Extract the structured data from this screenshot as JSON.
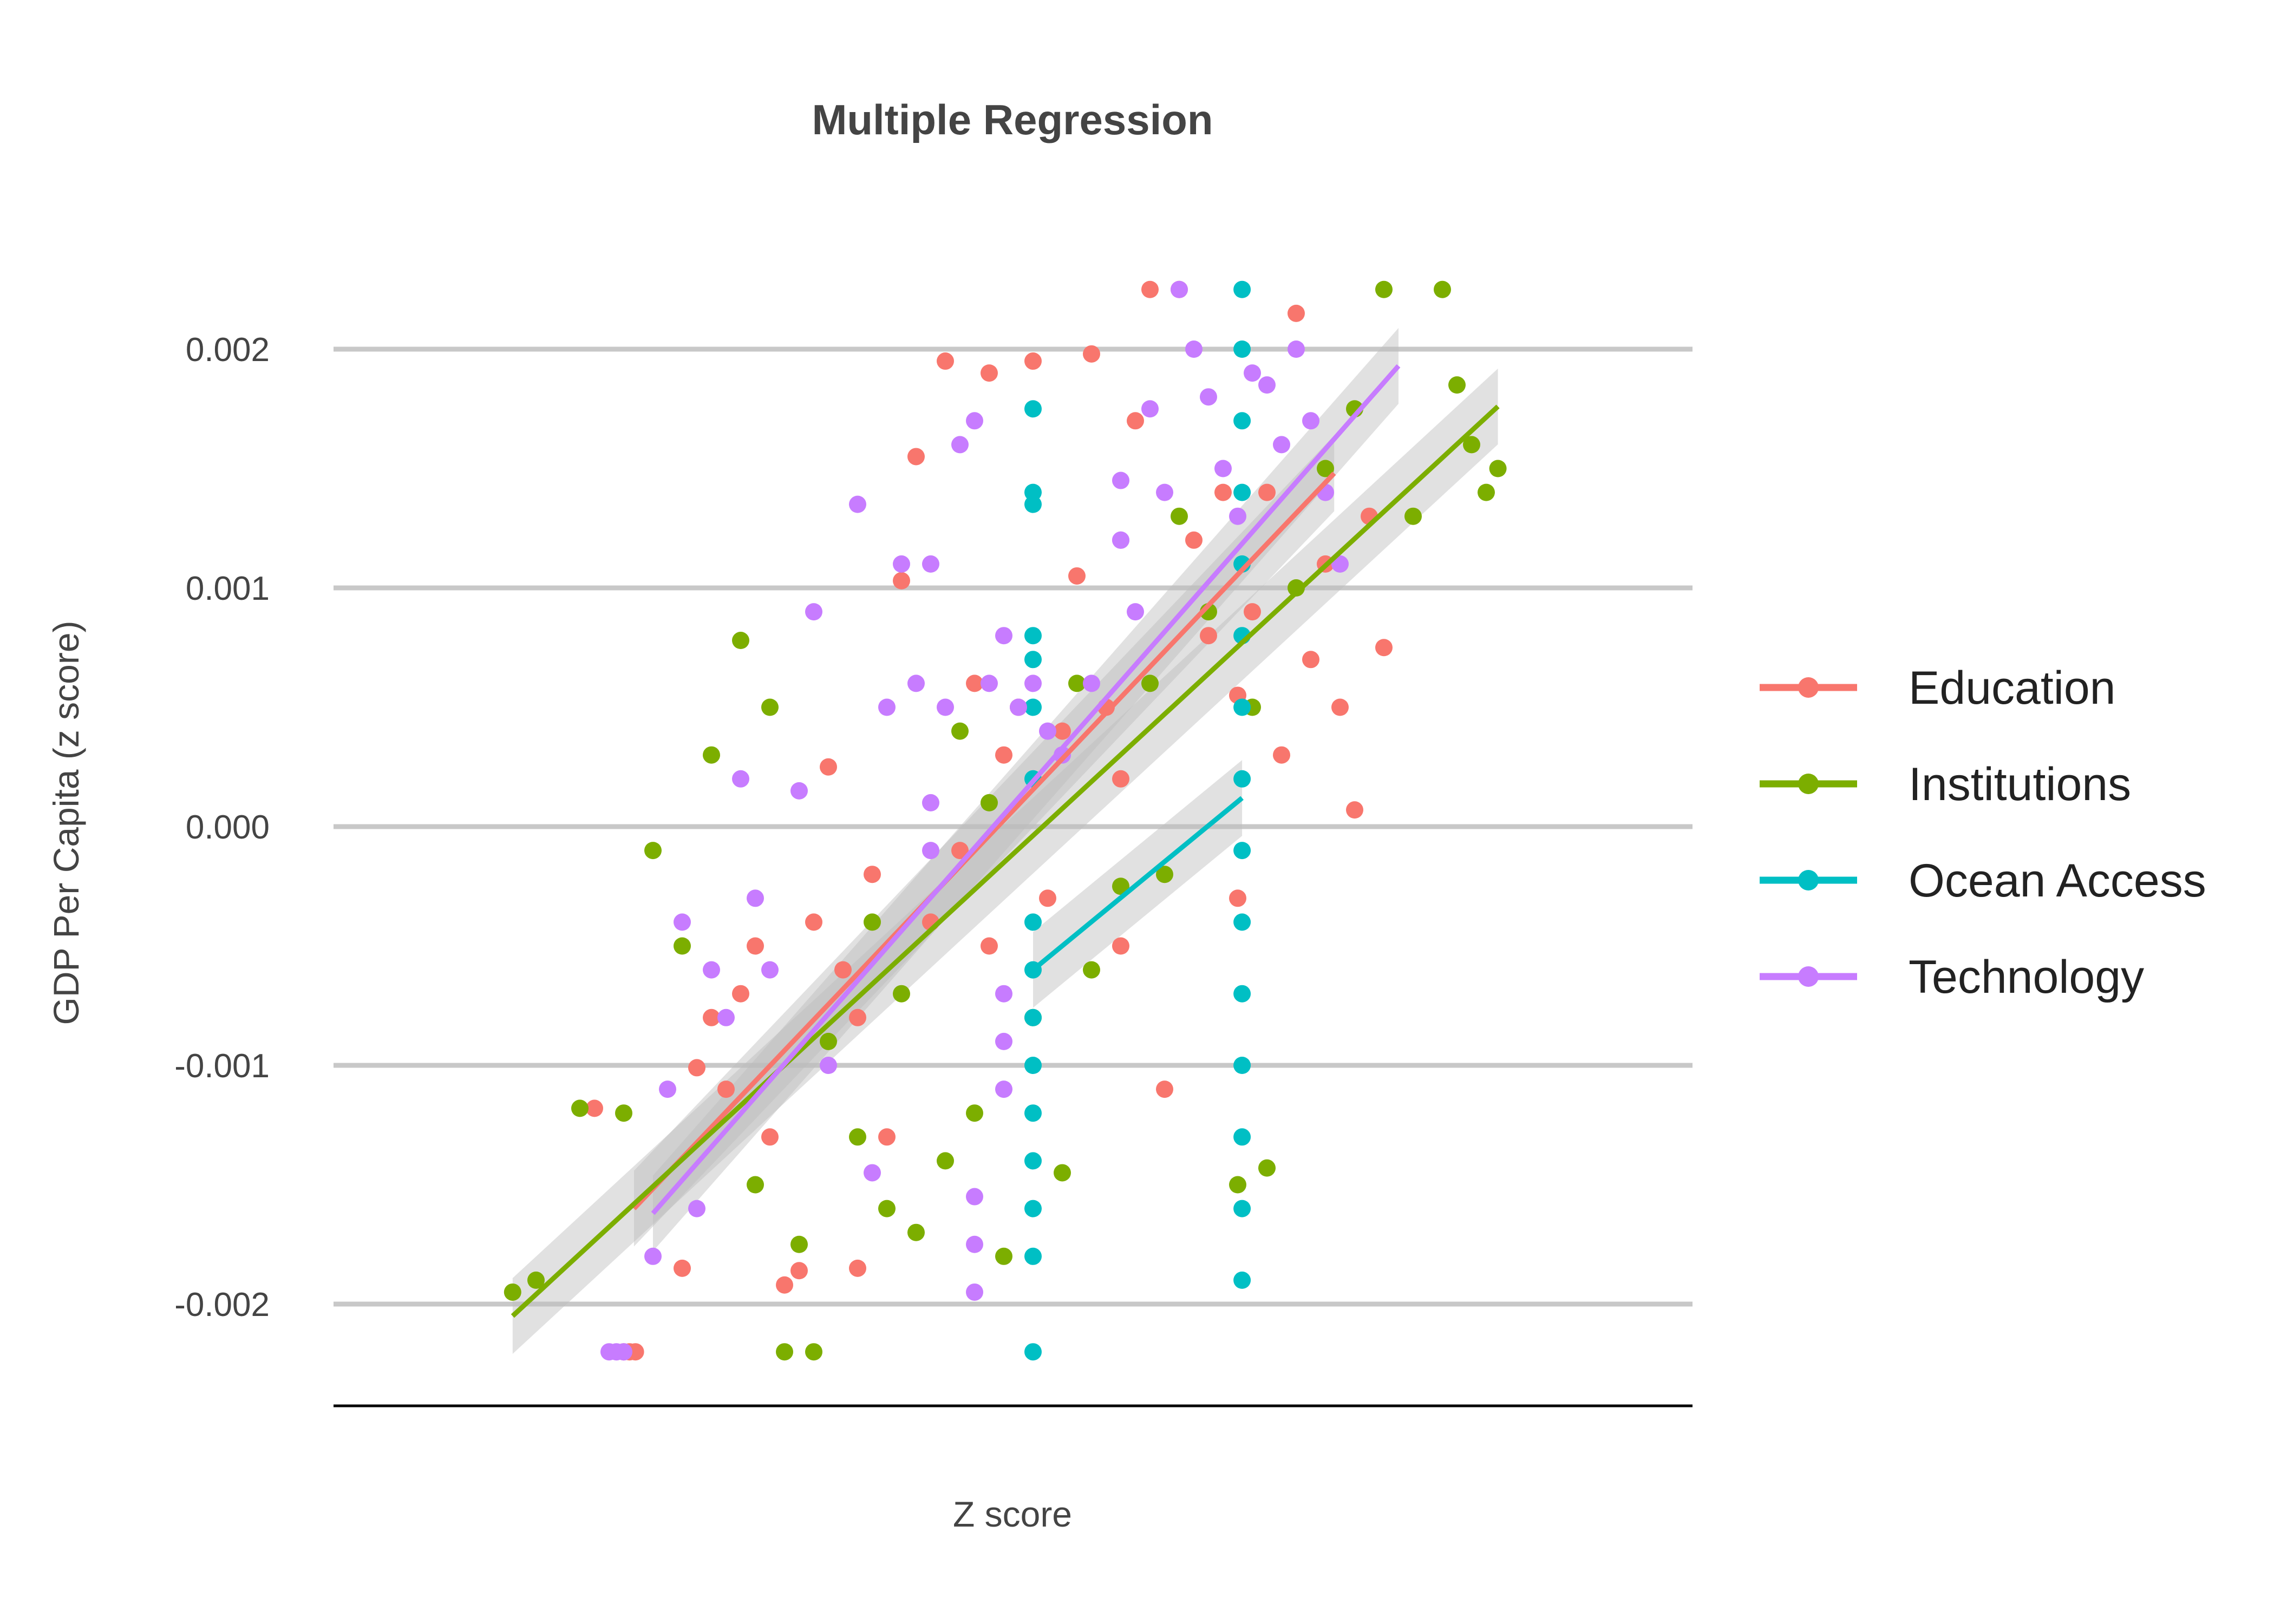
{
  "chart_data": {
    "type": "scatter",
    "title": "Multiple Regression",
    "xlabel": "Z score",
    "ylabel": "GDP Per Capita (z score)",
    "ylim": [
      -0.00242,
      0.00249
    ],
    "y_ticks": [
      0.002,
      0.001,
      0.0,
      -0.001,
      -0.002
    ],
    "y_tick_labels": [
      "0.002",
      "0.001",
      "0.000",
      "-0.001",
      "-0.002"
    ],
    "grid": "horizontal",
    "legend_position": "right",
    "series": [
      {
        "name": "Education",
        "color": "#F8766D",
        "regression_line": {
          "x": [
            -2.73,
            2.06
          ],
          "y": [
            -0.0016,
            0.00148
          ]
        },
        "points": [
          [
            -3.0,
            -0.00118
          ],
          [
            -2.4,
            -0.00185
          ],
          [
            -2.3,
            -0.00101
          ],
          [
            -2.2,
            -0.0008
          ],
          [
            -2.1,
            -0.0011
          ],
          [
            -2.0,
            -0.0007
          ],
          [
            -1.9,
            -0.0005
          ],
          [
            -1.8,
            -0.0013
          ],
          [
            -1.7,
            -0.00192
          ],
          [
            -1.6,
            -0.00186
          ],
          [
            -1.5,
            -0.0004
          ],
          [
            -1.4,
            0.00025
          ],
          [
            -1.3,
            -0.0006
          ],
          [
            -1.2,
            -0.0008
          ],
          [
            -1.1,
            -0.0002
          ],
          [
            -1.0,
            -0.0013
          ],
          [
            -0.9,
            0.00103
          ],
          [
            -0.8,
            0.00155
          ],
          [
            -0.7,
            -0.0004
          ],
          [
            -0.6,
            0.00195
          ],
          [
            -0.5,
            -0.0001
          ],
          [
            -0.4,
            0.0006
          ],
          [
            -0.3,
            0.0019
          ],
          [
            -0.2,
            0.0003
          ],
          [
            -0.1,
            0.0005
          ],
          [
            0.0,
            0.00195
          ],
          [
            0.1,
            -0.0003
          ],
          [
            0.2,
            0.0004
          ],
          [
            0.3,
            0.00105
          ],
          [
            0.4,
            0.00198
          ],
          [
            0.5,
            0.0005
          ],
          [
            0.6,
            -0.0005
          ],
          [
            0.7,
            0.0017
          ],
          [
            0.8,
            0.00225
          ],
          [
            0.9,
            -0.0011
          ],
          [
            1.0,
            0.00225
          ],
          [
            1.1,
            0.0012
          ],
          [
            1.2,
            0.0008
          ],
          [
            1.3,
            0.0014
          ],
          [
            1.4,
            0.00055
          ],
          [
            1.5,
            0.0009
          ],
          [
            1.6,
            0.0014
          ],
          [
            1.7,
            0.0003
          ],
          [
            1.8,
            0.00215
          ],
          [
            1.9,
            0.0007
          ],
          [
            2.0,
            0.0011
          ],
          [
            2.1,
            0.0005
          ],
          [
            2.2,
            7e-05
          ],
          [
            2.3,
            0.0013
          ],
          [
            2.4,
            0.00075
          ],
          [
            -2.8,
            -0.0022
          ],
          [
            -2.76,
            -0.0022
          ],
          [
            -2.72,
            -0.0022
          ],
          [
            -1.2,
            -0.00185
          ],
          [
            -0.3,
            -0.0005
          ],
          [
            0.6,
            0.0002
          ],
          [
            1.4,
            -0.0003
          ]
        ]
      },
      {
        "name": "Institutions",
        "color": "#7CAE00",
        "regression_line": {
          "x": [
            -3.56,
            3.18
          ],
          "y": [
            -0.00205,
            0.00176
          ]
        },
        "points": [
          [
            -3.56,
            -0.00195
          ],
          [
            -3.4,
            -0.0019
          ],
          [
            -3.1,
            -0.00118
          ],
          [
            -2.8,
            -0.0012
          ],
          [
            -2.6,
            -0.0001
          ],
          [
            -2.4,
            -0.0005
          ],
          [
            -2.2,
            0.0003
          ],
          [
            -2.0,
            0.00078
          ],
          [
            -1.9,
            -0.0015
          ],
          [
            -1.8,
            0.0005
          ],
          [
            -1.7,
            -0.0022
          ],
          [
            -1.6,
            -0.00175
          ],
          [
            -1.5,
            -0.0022
          ],
          [
            -1.4,
            -0.0009
          ],
          [
            -1.2,
            -0.0013
          ],
          [
            -1.0,
            -0.0016
          ],
          [
            -0.9,
            -0.0007
          ],
          [
            -0.8,
            -0.0017
          ],
          [
            -0.6,
            -0.0014
          ],
          [
            -0.4,
            -0.0012
          ],
          [
            -0.2,
            -0.0018
          ],
          [
            0.0,
            -0.0008
          ],
          [
            0.2,
            -0.00145
          ],
          [
            0.4,
            -0.0006
          ],
          [
            0.6,
            -0.00025
          ],
          [
            0.8,
            0.0006
          ],
          [
            1.0,
            0.0013
          ],
          [
            1.2,
            0.0009
          ],
          [
            1.4,
            -0.0015
          ],
          [
            1.6,
            -0.00143
          ],
          [
            1.8,
            0.001
          ],
          [
            2.0,
            0.0015
          ],
          [
            2.2,
            0.00175
          ],
          [
            2.4,
            0.00225
          ],
          [
            2.6,
            0.0013
          ],
          [
            2.8,
            0.00225
          ],
          [
            2.9,
            0.00185
          ],
          [
            3.0,
            0.0016
          ],
          [
            3.1,
            0.0014
          ],
          [
            3.18,
            0.0015
          ],
          [
            -0.5,
            0.0004
          ],
          [
            0.3,
            0.0006
          ],
          [
            0.9,
            -0.0002
          ],
          [
            1.5,
            0.0005
          ],
          [
            -1.1,
            -0.0004
          ],
          [
            -0.3,
            0.0001
          ]
        ]
      },
      {
        "name": "Ocean Access",
        "color": "#00BFC4",
        "regression_line": {
          "x": [
            0.0,
            1.43
          ],
          "y": [
            -0.0006,
            0.00012
          ]
        },
        "points": [
          [
            0.0,
            0.00175
          ],
          [
            0.0,
            0.0014
          ],
          [
            0.0,
            0.00135
          ],
          [
            0.0,
            0.0008
          ],
          [
            0.0,
            0.0007
          ],
          [
            0.0,
            0.0005
          ],
          [
            0.0,
            0.0002
          ],
          [
            0.0,
            -0.0004
          ],
          [
            0.0,
            -0.0006
          ],
          [
            0.0,
            -0.0008
          ],
          [
            0.0,
            -0.001
          ],
          [
            0.0,
            -0.0012
          ],
          [
            0.0,
            -0.0014
          ],
          [
            0.0,
            -0.0016
          ],
          [
            0.0,
            -0.0018
          ],
          [
            0.0,
            -0.0022
          ],
          [
            1.43,
            0.00225
          ],
          [
            1.43,
            0.002
          ],
          [
            1.43,
            0.0017
          ],
          [
            1.43,
            0.0014
          ],
          [
            1.43,
            0.0011
          ],
          [
            1.43,
            0.0008
          ],
          [
            1.43,
            0.0005
          ],
          [
            1.43,
            0.0002
          ],
          [
            1.43,
            -0.0001
          ],
          [
            1.43,
            -0.0004
          ],
          [
            1.43,
            -0.0007
          ],
          [
            1.43,
            -0.001
          ],
          [
            1.43,
            -0.0013
          ],
          [
            1.43,
            -0.0016
          ],
          [
            1.43,
            -0.0019
          ]
        ]
      },
      {
        "name": "Technology",
        "color": "#C77CFF",
        "regression_line": {
          "x": [
            -2.6,
            2.5
          ],
          "y": [
            -0.00162,
            0.00193
          ]
        },
        "points": [
          [
            -2.6,
            -0.0018
          ],
          [
            -2.5,
            -0.0011
          ],
          [
            -2.4,
            -0.0004
          ],
          [
            -2.3,
            -0.0016
          ],
          [
            -2.2,
            -0.0006
          ],
          [
            -2.1,
            -0.0008
          ],
          [
            -2.0,
            0.0002
          ],
          [
            -1.9,
            -0.0003
          ],
          [
            -1.8,
            -0.0006
          ],
          [
            -1.6,
            0.00015
          ],
          [
            -1.5,
            0.0009
          ],
          [
            -1.4,
            -0.001
          ],
          [
            -1.2,
            0.00135
          ],
          [
            -1.0,
            0.0005
          ],
          [
            -0.9,
            0.0011
          ],
          [
            -0.8,
            0.0006
          ],
          [
            -0.7,
            0.0011
          ],
          [
            -0.6,
            0.0005
          ],
          [
            -0.5,
            0.0016
          ],
          [
            -0.4,
            0.0017
          ],
          [
            -0.3,
            0.0006
          ],
          [
            -0.2,
            0.0008
          ],
          [
            -0.1,
            0.0005
          ],
          [
            0.0,
            0.0006
          ],
          [
            0.2,
            0.0003
          ],
          [
            0.4,
            0.0006
          ],
          [
            0.6,
            0.0012
          ],
          [
            0.7,
            0.0009
          ],
          [
            0.8,
            0.00175
          ],
          [
            0.9,
            0.0014
          ],
          [
            1.0,
            0.00225
          ],
          [
            1.1,
            0.002
          ],
          [
            1.2,
            0.0018
          ],
          [
            1.3,
            0.0015
          ],
          [
            1.4,
            0.0013
          ],
          [
            1.5,
            0.0019
          ],
          [
            1.6,
            0.00185
          ],
          [
            1.7,
            0.0016
          ],
          [
            1.8,
            0.002
          ],
          [
            1.9,
            0.0017
          ],
          [
            2.0,
            0.0014
          ],
          [
            2.1,
            0.0011
          ],
          [
            -1.1,
            -0.00145
          ],
          [
            -0.4,
            -0.00195
          ],
          [
            -0.4,
            -0.00175
          ],
          [
            -0.4,
            -0.00155
          ],
          [
            -0.2,
            -0.0011
          ],
          [
            -0.2,
            -0.0009
          ],
          [
            -0.2,
            -0.0007
          ],
          [
            0.1,
            0.0004
          ],
          [
            -0.7,
            0.0001
          ],
          [
            -0.7,
            -0.0001
          ],
          [
            0.6,
            0.00145
          ],
          [
            0.6,
            0.0012
          ],
          [
            -2.9,
            -0.0022
          ],
          [
            -2.85,
            -0.0022
          ],
          [
            -2.8,
            -0.0022
          ]
        ]
      }
    ]
  }
}
